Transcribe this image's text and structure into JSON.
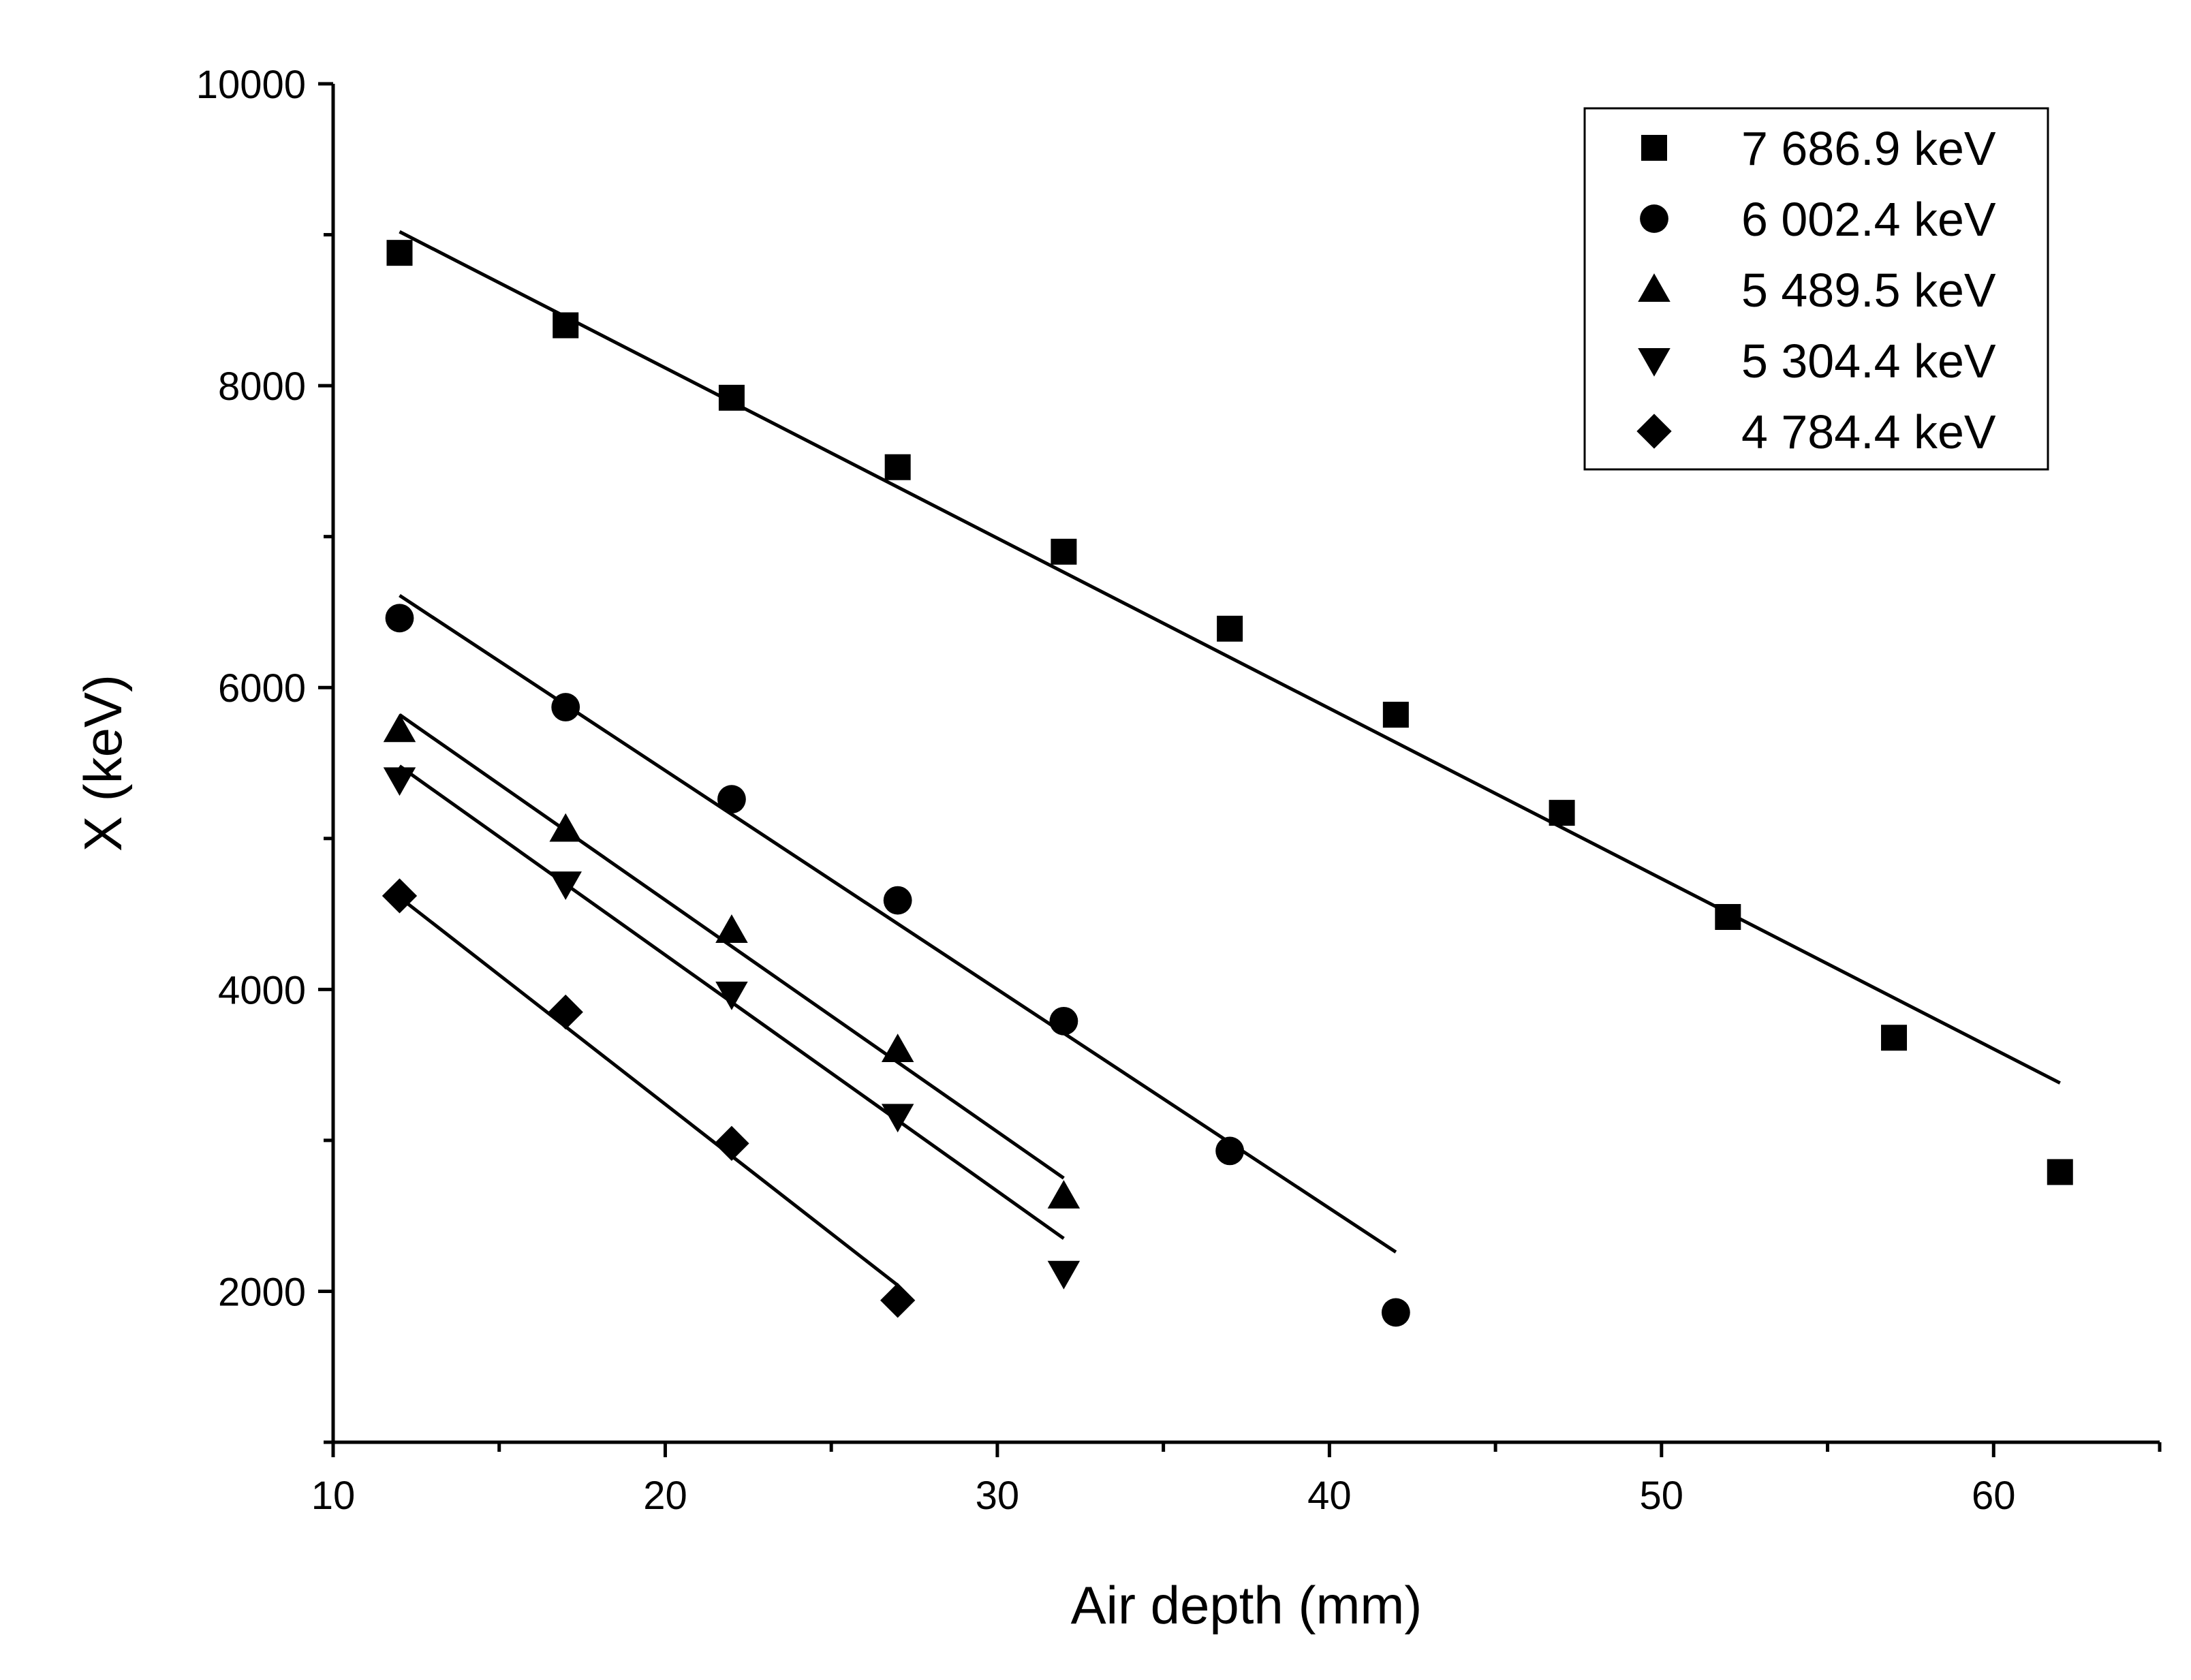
{
  "chart_data": {
    "type": "scatter",
    "title": "",
    "xlabel": "Air depth (mm)",
    "ylabel": "X (keV)",
    "xlim": [
      10,
      65
    ],
    "ylim": [
      1000,
      10000
    ],
    "x_ticks": [
      10,
      20,
      30,
      40,
      50,
      60
    ],
    "x_tick_labels": [
      "10",
      "20",
      "30",
      "40",
      "50",
      "60"
    ],
    "y_ticks": [
      2000,
      4000,
      6000,
      8000,
      10000
    ],
    "y_tick_labels": [
      "2000",
      "4000",
      "6000",
      "8000",
      "10000"
    ],
    "grid": false,
    "legend_position": "top-right",
    "series": [
      {
        "name": "7 686.9 keV",
        "marker": "square",
        "color": "#000000",
        "x": [
          12,
          17,
          22,
          27,
          32,
          37,
          42,
          47,
          52,
          57,
          62
        ],
        "y": [
          8880,
          8400,
          7920,
          7460,
          6900,
          6390,
          5820,
          5170,
          4480,
          3680,
          2790
        ],
        "fit": {
          "x": [
            12,
            62
          ],
          "y": [
            9020,
            3380
          ]
        }
      },
      {
        "name": "6 002.4 keV",
        "marker": "circle",
        "color": "#000000",
        "x": [
          12,
          17,
          22,
          27,
          32,
          37,
          42
        ],
        "y": [
          6460,
          5870,
          5260,
          4590,
          3790,
          2930,
          1860
        ],
        "fit": {
          "x": [
            12,
            42
          ],
          "y": [
            6610,
            2260
          ]
        }
      },
      {
        "name": "5 489.5 keV",
        "marker": "triangle-up",
        "color": "#000000",
        "x": [
          12,
          17,
          22,
          27,
          32
        ],
        "y": [
          5720,
          5060,
          4390,
          3600,
          2630
        ],
        "fit": {
          "x": [
            12,
            32
          ],
          "y": [
            5820,
            2750
          ]
        }
      },
      {
        "name": "5 304.4 keV",
        "marker": "triangle-down",
        "color": "#000000",
        "x": [
          12,
          17,
          22,
          27,
          32
        ],
        "y": [
          5390,
          4700,
          3970,
          3160,
          2120
        ],
        "fit": {
          "x": [
            12,
            32
          ],
          "y": [
            5480,
            2350
          ]
        }
      },
      {
        "name": "4 784.4 keV",
        "marker": "diamond",
        "color": "#000000",
        "x": [
          12,
          17,
          22,
          27
        ],
        "y": [
          4620,
          3850,
          2980,
          1940
        ],
        "fit": {
          "x": [
            12,
            27
          ],
          "y": [
            4610,
            2040
          ]
        }
      }
    ]
  }
}
